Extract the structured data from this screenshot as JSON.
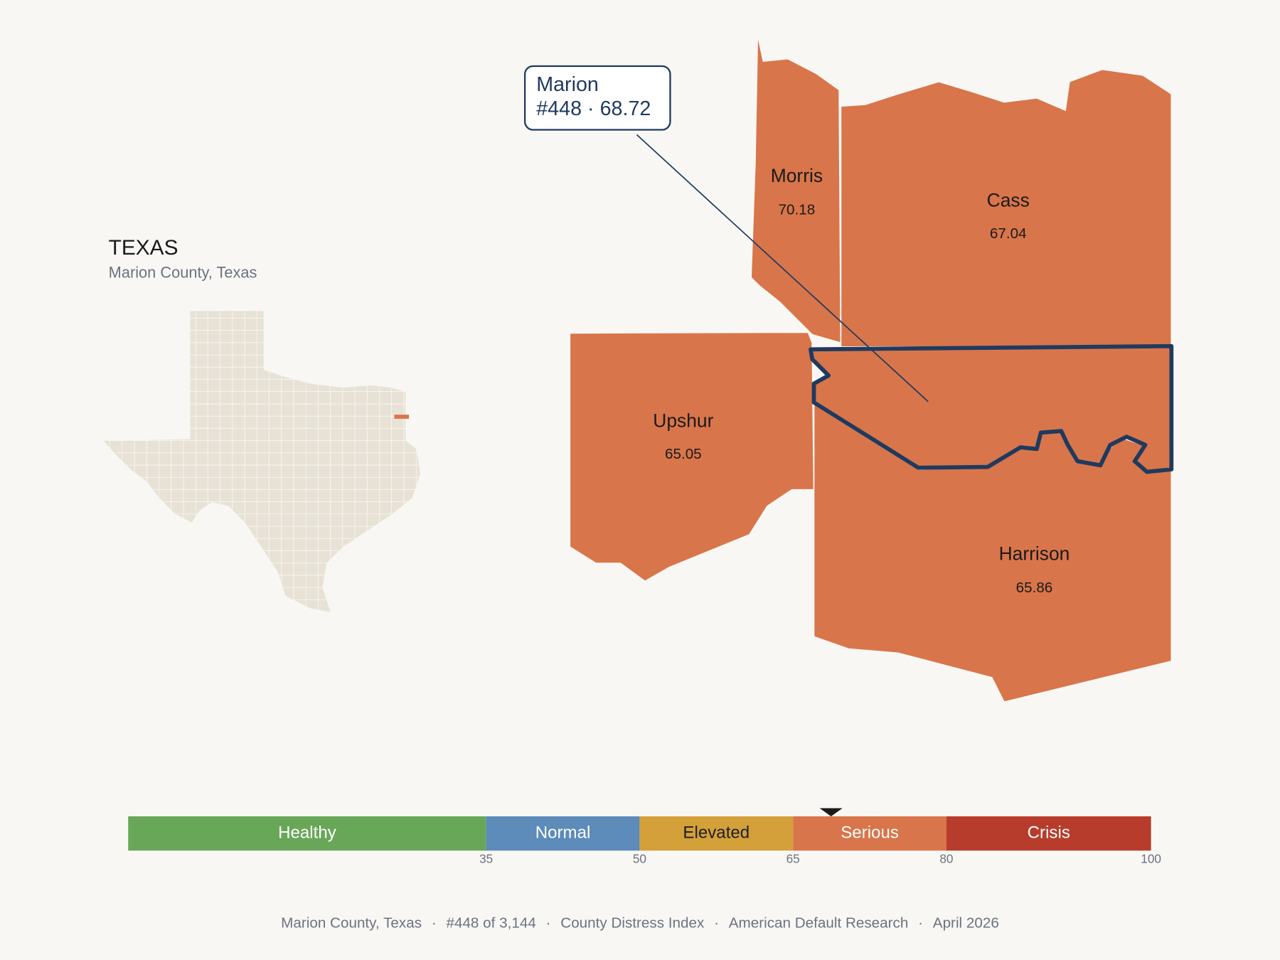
{
  "header": {
    "title": "TEXAS",
    "subtitle": "Marion County, Texas"
  },
  "focus": {
    "name": "Marion",
    "rank": "#448",
    "separator": "·",
    "score": 68.72
  },
  "counties": [
    {
      "name": "Morris",
      "score": 70.18
    },
    {
      "name": "Cass",
      "score": 67.04
    },
    {
      "name": "Upshur",
      "score": 65.05
    },
    {
      "name": "Harrison",
      "score": 65.86
    }
  ],
  "scale": {
    "range": [
      0,
      100
    ],
    "ticks": [
      35,
      50,
      65,
      80,
      100
    ],
    "bands": [
      {
        "label": "Healthy",
        "color": "#68a758",
        "text_color": "#ffffff"
      },
      {
        "label": "Normal",
        "color": "#5d8bba",
        "text_color": "#ffffff"
      },
      {
        "label": "Elevated",
        "color": "#d4a03a",
        "text_color": "#1f1f1f"
      },
      {
        "label": "Serious",
        "color": "#d9754a",
        "text_color": "#ffffff"
      },
      {
        "label": "Crisis",
        "color": "#b83c2b",
        "text_color": "#ffffff"
      }
    ]
  },
  "footer": {
    "separator": "·",
    "items": [
      "Marion County, Texas",
      "#448 of 3,144",
      "County Distress Index",
      "American Default Research",
      "April 2026"
    ]
  }
}
